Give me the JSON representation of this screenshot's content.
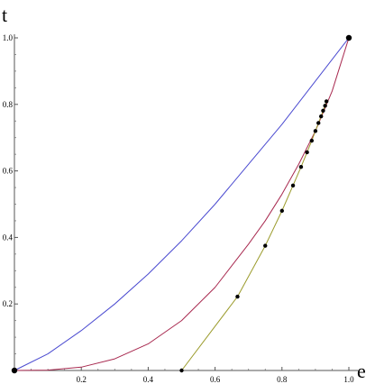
{
  "chart_data": {
    "type": "line",
    "xlabel": "e",
    "ylabel": "t",
    "xlim": [
      0,
      1
    ],
    "ylim": [
      0,
      1
    ],
    "x_ticks": [
      "0.2",
      "0.4",
      "0.6",
      "0.8",
      "1.0"
    ],
    "y_ticks": [
      "0.2",
      "0.4",
      "0.6",
      "0.8",
      "1.0"
    ],
    "grid": false,
    "legend": "none",
    "series": [
      {
        "color": "#4a4ad0",
        "points": [
          [
            0,
            0
          ],
          [
            0.1,
            0.05
          ],
          [
            0.2,
            0.12
          ],
          [
            0.3,
            0.2
          ],
          [
            0.4,
            0.29
          ],
          [
            0.5,
            0.39
          ],
          [
            0.6,
            0.5
          ],
          [
            0.7,
            0.62
          ],
          [
            0.8,
            0.74
          ],
          [
            0.9,
            0.87
          ],
          [
            1.0,
            1.0
          ]
        ]
      },
      {
        "color": "#a8294f",
        "points": [
          [
            0,
            0
          ],
          [
            0.1,
            0.001
          ],
          [
            0.2,
            0.01
          ],
          [
            0.3,
            0.035
          ],
          [
            0.4,
            0.08
          ],
          [
            0.5,
            0.15
          ],
          [
            0.6,
            0.25
          ],
          [
            0.7,
            0.38
          ],
          [
            0.75,
            0.45
          ],
          [
            0.8,
            0.53
          ],
          [
            0.85,
            0.62
          ],
          [
            0.9,
            0.72
          ],
          [
            0.95,
            0.84
          ],
          [
            1.0,
            1.0
          ]
        ]
      },
      {
        "color": "#9b9b2c",
        "markers": true,
        "points": [
          [
            0.5,
            0.0
          ],
          [
            0.667,
            0.222
          ],
          [
            0.75,
            0.375
          ],
          [
            0.8,
            0.48
          ],
          [
            0.833,
            0.556
          ],
          [
            0.857,
            0.612
          ],
          [
            0.875,
            0.656
          ],
          [
            0.889,
            0.691
          ],
          [
            0.9,
            0.72
          ],
          [
            0.909,
            0.744
          ],
          [
            0.917,
            0.764
          ],
          [
            0.923,
            0.781
          ],
          [
            0.929,
            0.796
          ],
          [
            0.933,
            0.809
          ]
        ]
      }
    ],
    "endpoints": [
      [
        0,
        0
      ],
      [
        1,
        1
      ]
    ]
  }
}
